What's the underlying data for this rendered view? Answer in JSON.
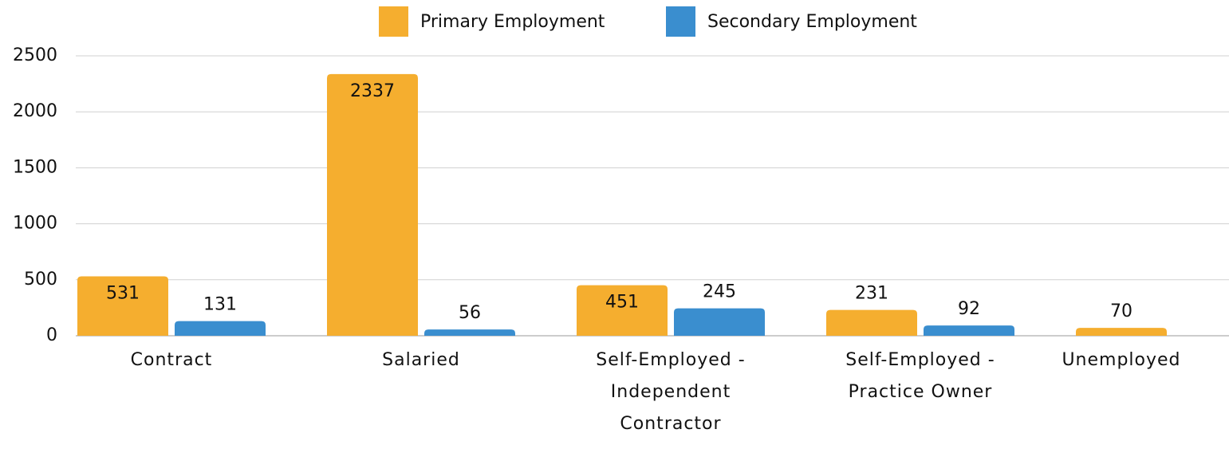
{
  "chart_data": {
    "type": "bar",
    "categories": [
      "Contract",
      "Salaried",
      "Self-Employed - Independent Contractor",
      "Self-Employed - Practice Owner",
      "Unemployed"
    ],
    "series": [
      {
        "name": "Primary Employment",
        "color": "#f5ae2f",
        "values": [
          531,
          2337,
          451,
          231,
          70
        ]
      },
      {
        "name": "Secondary Employment",
        "color": "#3a8ecf",
        "values": [
          131,
          56,
          245,
          92,
          null
        ]
      }
    ],
    "ylim": [
      0,
      2500
    ],
    "yticks": [
      0,
      500,
      1000,
      1500,
      2000,
      2500
    ],
    "grid": true,
    "legend": "top"
  }
}
